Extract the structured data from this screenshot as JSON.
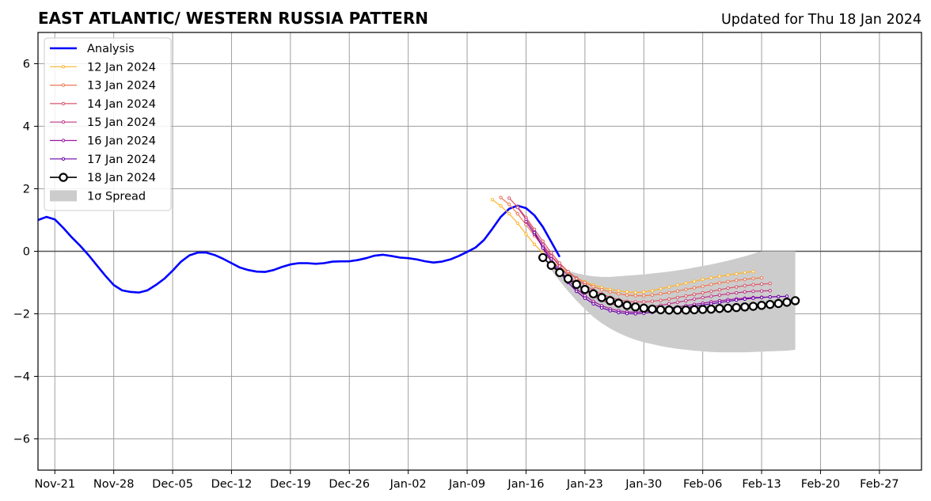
{
  "chart_data": {
    "type": "line",
    "title": "EAST ATLANTIC/ WESTERN RUSSIA PATTERN",
    "subtitle": "Updated for Thu 18 Jan 2024",
    "xlabel": "",
    "ylabel": "",
    "x_ticks": [
      "Nov-21",
      "Nov-28",
      "Dec-05",
      "Dec-12",
      "Dec-19",
      "Dec-26",
      "Jan-02",
      "Jan-09",
      "Jan-16",
      "Jan-23",
      "Jan-30",
      "Feb-06",
      "Feb-13",
      "Feb-20",
      "Feb-27"
    ],
    "x_tick_dates": [
      "2023-11-21",
      "2023-11-28",
      "2023-12-05",
      "2023-12-12",
      "2023-12-19",
      "2023-12-26",
      "2024-01-02",
      "2024-01-09",
      "2024-01-16",
      "2024-01-23",
      "2024-01-30",
      "2024-02-06",
      "2024-02-13",
      "2024-02-20",
      "2024-02-27"
    ],
    "xlim": [
      "2023-11-19",
      "2024-03-03"
    ],
    "y_ticks": [
      -6,
      -4,
      -2,
      0,
      2,
      4,
      6
    ],
    "y_tick_labels": [
      "−6",
      "−4",
      "−2",
      "0",
      "2",
      "4",
      "6"
    ],
    "ylim": [
      -7,
      7
    ],
    "grid": true,
    "legend_position": "top-left",
    "analysis": {
      "name": "Analysis",
      "color": "#0000ff",
      "start": "2023-11-19",
      "values": [
        1.0,
        1.1,
        1.02,
        0.75,
        0.45,
        0.18,
        -0.12,
        -0.45,
        -0.78,
        -1.08,
        -1.25,
        -1.3,
        -1.32,
        -1.25,
        -1.08,
        -0.88,
        -0.62,
        -0.33,
        -0.13,
        -0.04,
        -0.04,
        -0.12,
        -0.24,
        -0.38,
        -0.52,
        -0.6,
        -0.65,
        -0.66,
        -0.6,
        -0.5,
        -0.42,
        -0.38,
        -0.38,
        -0.4,
        -0.38,
        -0.33,
        -0.32,
        -0.32,
        -0.28,
        -0.22,
        -0.14,
        -0.11,
        -0.15,
        -0.2,
        -0.22,
        -0.26,
        -0.32,
        -0.36,
        -0.33,
        -0.26,
        -0.15,
        -0.02,
        0.12,
        0.36,
        0.72,
        1.1,
        1.36,
        1.46,
        1.38,
        1.15,
        0.78,
        0.3,
        -0.18
      ]
    },
    "forecasts": [
      {
        "name": "12 Jan 2024",
        "color": "#fdb42f",
        "start": "2024-01-12",
        "values": [
          1.65,
          1.45,
          1.2,
          0.9,
          0.55,
          0.22,
          -0.05,
          -0.3,
          -0.5,
          -0.68,
          -0.85,
          -0.98,
          -1.08,
          -1.16,
          -1.22,
          -1.27,
          -1.3,
          -1.32,
          -1.3,
          -1.26,
          -1.2,
          -1.14,
          -1.08,
          -1.02,
          -0.96,
          -0.9,
          -0.85,
          -0.8,
          -0.76,
          -0.72,
          -0.68,
          -0.65
        ]
      },
      {
        "name": "13 Jan 2024",
        "color": "#ed7953",
        "start": "2024-01-13",
        "values": [
          1.72,
          1.5,
          1.2,
          0.85,
          0.5,
          0.15,
          -0.15,
          -0.42,
          -0.65,
          -0.85,
          -1.0,
          -1.13,
          -1.23,
          -1.3,
          -1.36,
          -1.4,
          -1.42,
          -1.42,
          -1.4,
          -1.36,
          -1.32,
          -1.27,
          -1.22,
          -1.17,
          -1.12,
          -1.06,
          -1.01,
          -0.97,
          -0.93,
          -0.9,
          -0.87,
          -0.85
        ]
      },
      {
        "name": "14 Jan 2024",
        "color": "#d8576b",
        "start": "2024-01-14",
        "values": [
          1.7,
          1.42,
          1.08,
          0.7,
          0.32,
          -0.05,
          -0.38,
          -0.65,
          -0.88,
          -1.08,
          -1.24,
          -1.37,
          -1.47,
          -1.55,
          -1.6,
          -1.62,
          -1.62,
          -1.6,
          -1.57,
          -1.53,
          -1.48,
          -1.43,
          -1.38,
          -1.33,
          -1.28,
          -1.23,
          -1.18,
          -1.14,
          -1.1,
          -1.07,
          -1.05,
          -1.03
        ]
      },
      {
        "name": "15 Jan 2024",
        "color": "#bd3786",
        "start": "2024-01-15",
        "values": [
          1.4,
          1.02,
          0.62,
          0.22,
          -0.15,
          -0.48,
          -0.78,
          -1.03,
          -1.25,
          -1.43,
          -1.57,
          -1.67,
          -1.74,
          -1.78,
          -1.8,
          -1.79,
          -1.77,
          -1.73,
          -1.68,
          -1.63,
          -1.58,
          -1.53,
          -1.48,
          -1.44,
          -1.4,
          -1.36,
          -1.33,
          -1.3,
          -1.28,
          -1.27,
          -1.26
        ]
      },
      {
        "name": "16 Jan 2024",
        "color": "#9c179e",
        "start": "2024-01-16",
        "values": [
          0.95,
          0.55,
          0.15,
          -0.25,
          -0.6,
          -0.92,
          -1.2,
          -1.42,
          -1.6,
          -1.74,
          -1.84,
          -1.9,
          -1.94,
          -1.95,
          -1.93,
          -1.9,
          -1.86,
          -1.82,
          -1.78,
          -1.74,
          -1.7,
          -1.66,
          -1.62,
          -1.58,
          -1.55,
          -1.52,
          -1.5,
          -1.48,
          -1.47,
          -1.46,
          -1.45
        ]
      },
      {
        "name": "17 Jan 2024",
        "color": "#6a00a8",
        "start": "2024-01-17",
        "values": [
          0.6,
          0.1,
          -0.32,
          -0.68,
          -1.0,
          -1.28,
          -1.5,
          -1.68,
          -1.81,
          -1.9,
          -1.96,
          -1.99,
          -2.0,
          -1.98,
          -1.95,
          -1.92,
          -1.88,
          -1.84,
          -1.8,
          -1.76,
          -1.72,
          -1.68,
          -1.64,
          -1.6,
          -1.56,
          -1.53,
          -1.5,
          -1.48,
          -1.46,
          -1.45,
          -1.44
        ]
      },
      {
        "name": "18 Jan 2024",
        "color": "#000000",
        "start": "2024-01-18",
        "values": [
          -0.2,
          -0.45,
          -0.68,
          -0.88,
          -1.06,
          -1.22,
          -1.36,
          -1.48,
          -1.58,
          -1.66,
          -1.73,
          -1.78,
          -1.82,
          -1.85,
          -1.87,
          -1.88,
          -1.88,
          -1.88,
          -1.87,
          -1.86,
          -1.85,
          -1.83,
          -1.82,
          -1.8,
          -1.78,
          -1.76,
          -1.73,
          -1.7,
          -1.67,
          -1.63,
          -1.58
        ]
      }
    ],
    "spread": {
      "name": "1σ Spread",
      "color": "#cccccc",
      "start": "2024-01-18",
      "upper": [
        -0.2,
        -0.38,
        -0.52,
        -0.62,
        -0.7,
        -0.76,
        -0.8,
        -0.82,
        -0.82,
        -0.8,
        -0.78,
        -0.76,
        -0.74,
        -0.71,
        -0.68,
        -0.65,
        -0.61,
        -0.57,
        -0.52,
        -0.47,
        -0.42,
        -0.36,
        -0.3,
        -0.23,
        -0.16,
        -0.08,
        0.0,
        0.0,
        0.0,
        0.0,
        0.0
      ],
      "lower": [
        -0.2,
        -0.6,
        -0.95,
        -1.28,
        -1.58,
        -1.85,
        -2.1,
        -2.3,
        -2.47,
        -2.61,
        -2.73,
        -2.83,
        -2.91,
        -2.97,
        -3.03,
        -3.08,
        -3.12,
        -3.15,
        -3.18,
        -3.2,
        -3.22,
        -3.23,
        -3.23,
        -3.23,
        -3.23,
        -3.22,
        -3.21,
        -3.2,
        -3.19,
        -3.18,
        -3.15
      ]
    },
    "legend": [
      "Analysis",
      "12 Jan 2024",
      "13 Jan 2024",
      "14 Jan 2024",
      "15 Jan 2024",
      "16 Jan 2024",
      "17 Jan 2024",
      "18 Jan 2024",
      "1σ Spread"
    ]
  }
}
